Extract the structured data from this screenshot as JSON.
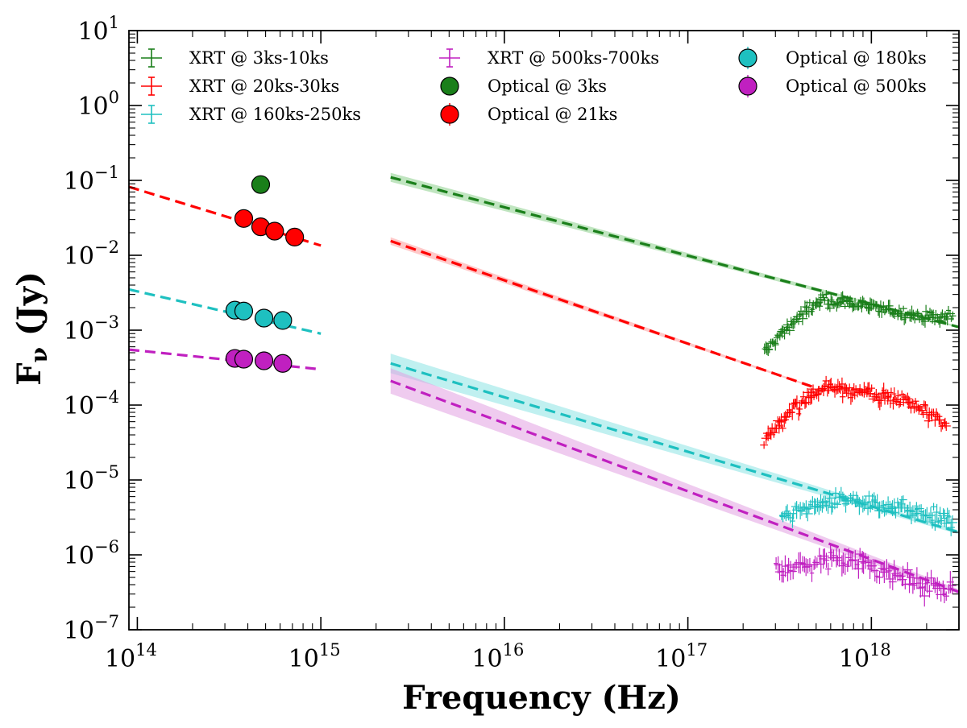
{
  "chart_data": {
    "type": "scatter",
    "title": "",
    "xlabel": "Frequency (Hz)",
    "ylabel": "F_ν (Jy)",
    "ylabel_parts": {
      "main": "F",
      "sub": "ν",
      "unit": " (Jy)"
    },
    "xscale": "log",
    "yscale": "log",
    "xlim": [
      90000000000000.0,
      3e+18
    ],
    "ylim": [
      1e-07,
      10
    ],
    "x_ticks": [
      {
        "value": 100000000000000.0,
        "base": "10",
        "exp": "14"
      },
      {
        "value": 1000000000000000.0,
        "base": "10",
        "exp": "15"
      },
      {
        "value": 1e+16,
        "base": "10",
        "exp": "16"
      },
      {
        "value": 1e+17,
        "base": "10",
        "exp": "17"
      },
      {
        "value": 1e+18,
        "base": "10",
        "exp": "18"
      }
    ],
    "y_ticks": [
      {
        "value": 1e-07,
        "base": "10",
        "exp": "−7"
      },
      {
        "value": 1e-06,
        "base": "10",
        "exp": "−6"
      },
      {
        "value": 1e-05,
        "base": "10",
        "exp": "−5"
      },
      {
        "value": 0.0001,
        "base": "10",
        "exp": "−4"
      },
      {
        "value": 0.001,
        "base": "10",
        "exp": "−3"
      },
      {
        "value": 0.01,
        "base": "10",
        "exp": "−2"
      },
      {
        "value": 0.1,
        "base": "10",
        "exp": "−1"
      },
      {
        "value": 1,
        "base": "10",
        "exp": "0"
      },
      {
        "value": 10,
        "base": "10",
        "exp": "1"
      }
    ],
    "legend_position": "top",
    "legend": [
      {
        "label": "XRT @ 3ks-10ks",
        "marker": "errorbar",
        "color": "#1a7f1a"
      },
      {
        "label": "XRT @ 20ks-30ks",
        "marker": "errorbar",
        "color": "#ff0000"
      },
      {
        "label": "XRT @ 160ks-250ks",
        "marker": "errorbar",
        "color": "#1ec0c0"
      },
      {
        "label": "XRT @ 500ks-700ks",
        "marker": "errorbar",
        "color": "#c020c0"
      },
      {
        "label": "Optical @ 3ks",
        "marker": "circle",
        "color": "#1a7f1a"
      },
      {
        "label": "Optical @ 21ks",
        "marker": "circle-errorbar",
        "color": "#ff0000"
      },
      {
        "label": "Optical @ 180ks",
        "marker": "circle-errorbar",
        "color": "#1ec0c0"
      },
      {
        "label": "Optical @ 500ks",
        "marker": "circle-errorbar",
        "color": "#c020c0"
      }
    ],
    "series": [
      {
        "name": "3ks-10ks",
        "color": "#1a7f1a",
        "band_color": "#8ccf8c",
        "model_optical": null,
        "model_xray": {
          "x": [
            2400000000000000.0,
            3e+18
          ],
          "y": [
            0.11,
            0.0011
          ],
          "band_width": 0.06
        },
        "optical_points": [
          {
            "x": 470000000000000.0,
            "y": 0.088
          }
        ],
        "xrt": {
          "x_range": [
            2.6e+17,
            2.8e+18
          ],
          "n_points": 150,
          "shape": [
            [
              2.6e+17,
              0.0005
            ],
            [
              3.5e+17,
              0.0011
            ],
            [
              4.5e+17,
              0.0019
            ],
            [
              5.5e+17,
              0.0025
            ],
            [
              7e+17,
              0.0024
            ],
            [
              1e+18,
              0.002
            ],
            [
              1.5e+18,
              0.0017
            ],
            [
              2e+18,
              0.0015
            ],
            [
              2.8e+18,
              0.0015
            ]
          ],
          "scatter_dex": 0.08,
          "err_dex": 0.06
        }
      },
      {
        "name": "20ks-30ks",
        "color": "#ff0000",
        "band_color": "#ff9c9c",
        "model_optical": {
          "x": [
            90000000000000.0,
            1000000000000000.0
          ],
          "y": [
            0.082,
            0.0135
          ]
        },
        "model_xray": {
          "x": [
            2400000000000000.0,
            4.8e+17
          ],
          "y": [
            0.0155,
            0.000175
          ],
          "band_width": 0.05
        },
        "optical_points": [
          {
            "x": 380000000000000.0,
            "y": 0.031
          },
          {
            "x": 470000000000000.0,
            "y": 0.024
          },
          {
            "x": 560000000000000.0,
            "y": 0.021
          },
          {
            "x": 720000000000000.0,
            "y": 0.0175
          }
        ],
        "xrt": {
          "x_range": [
            2.6e+17,
            2.6e+18
          ],
          "n_points": 140,
          "shape": [
            [
              2.6e+17,
              3.5e-05
            ],
            [
              3.5e+17,
              8e-05
            ],
            [
              4.5e+17,
              0.00013
            ],
            [
              5.5e+17,
              0.00017
            ],
            [
              7.5e+17,
              0.00016
            ],
            [
              1e+18,
              0.00014
            ],
            [
              1.5e+18,
              0.000115
            ],
            [
              2e+18,
              8e-05
            ],
            [
              2.6e+18,
              5.5e-05
            ]
          ],
          "scatter_dex": 0.09,
          "err_dex": 0.07
        }
      },
      {
        "name": "160ks-250ks",
        "color": "#1ec0c0",
        "band_color": "#8ce4e4",
        "model_optical": {
          "x": [
            90000000000000.0,
            1000000000000000.0
          ],
          "y": [
            0.0035,
            0.0009
          ]
        },
        "model_xray": {
          "x": [
            2400000000000000.0,
            3e+18
          ],
          "y": [
            0.00036,
            2e-06
          ],
          "band_width": 0.13
        },
        "optical_points": [
          {
            "x": 340000000000000.0,
            "y": 0.00185
          },
          {
            "x": 380000000000000.0,
            "y": 0.0018
          },
          {
            "x": 490000000000000.0,
            "y": 0.00145
          },
          {
            "x": 620000000000000.0,
            "y": 0.00135
          }
        ],
        "xrt": {
          "x_range": [
            3.2e+17,
            2.8e+18
          ],
          "n_points": 110,
          "shape": [
            [
              3.2e+17,
              3e-06
            ],
            [
              5e+17,
              4.8e-06
            ],
            [
              7e+17,
              5.3e-06
            ],
            [
              1e+18,
              4.5e-06
            ],
            [
              1.5e+18,
              4e-06
            ],
            [
              2e+18,
              3.4e-06
            ],
            [
              2.8e+18,
              2.6e-06
            ]
          ],
          "scatter_dex": 0.1,
          "err_dex": 0.08
        }
      },
      {
        "name": "500ks-700ks",
        "color": "#c020c0",
        "band_color": "#e2a0e2",
        "model_optical": {
          "x": [
            90000000000000.0,
            1000000000000000.0
          ],
          "y": [
            0.00055,
            0.0003
          ]
        },
        "model_xray": {
          "x": [
            2400000000000000.0,
            3e+18
          ],
          "y": [
            0.00021,
            3.2e-07
          ],
          "band_width": 0.17
        },
        "optical_points": [
          {
            "x": 340000000000000.0,
            "y": 0.00042
          },
          {
            "x": 380000000000000.0,
            "y": 0.00041
          },
          {
            "x": 490000000000000.0,
            "y": 0.00039
          },
          {
            "x": 620000000000000.0,
            "y": 0.00036
          }
        ],
        "xrt": {
          "x_range": [
            3e+17,
            2.8e+18
          ],
          "n_points": 95,
          "shape": [
            [
              3e+17,
              7e-07
            ],
            [
              5e+17,
              7.5e-07
            ],
            [
              7e+17,
              9e-07
            ],
            [
              1e+18,
              7e-07
            ],
            [
              1.5e+18,
              5e-07
            ],
            [
              2e+18,
              3.8e-07
            ],
            [
              2.8e+18,
              3.2e-07
            ]
          ],
          "scatter_dex": 0.12,
          "err_dex": 0.1
        }
      }
    ]
  }
}
